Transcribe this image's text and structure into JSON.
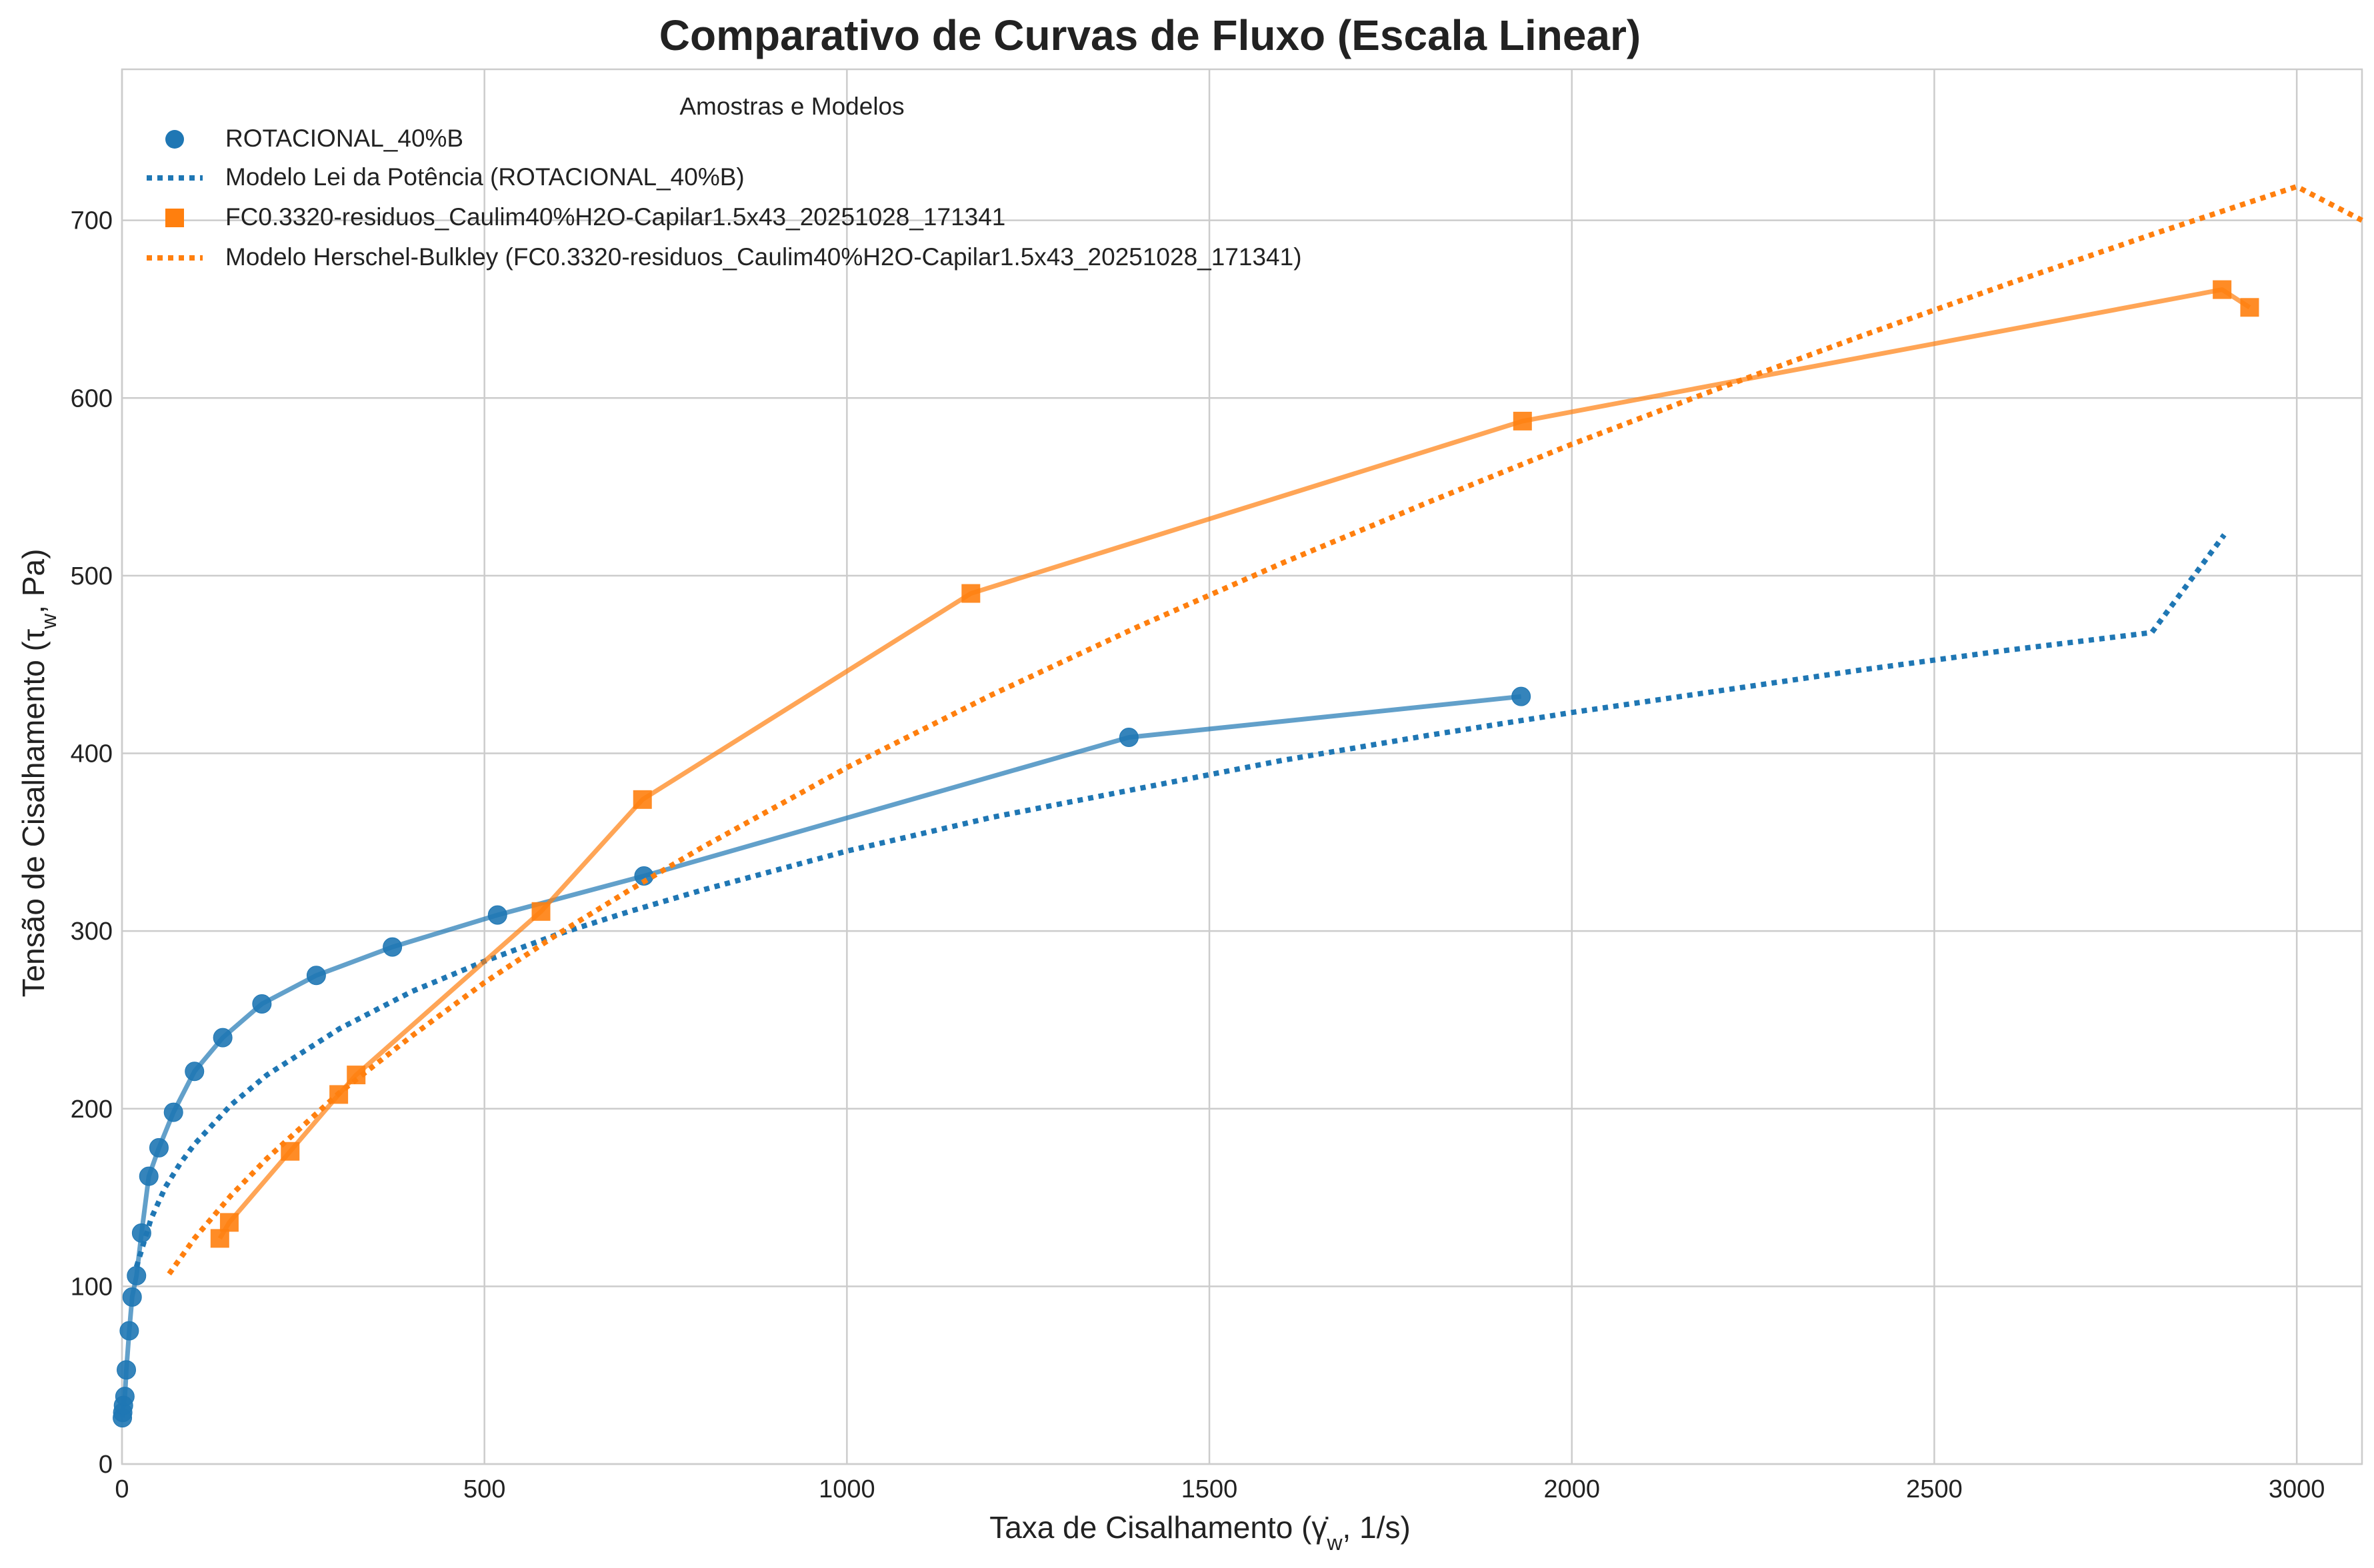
{
  "chart_data": {
    "type": "line",
    "title": "Comparativo de Curvas de Fluxo (Escala Linear)",
    "xlabel": "Taxa de Cisalhamento (γ̇w, 1/s)",
    "ylabel": "Tensão de Cisalhamento (τw, Pa)",
    "xlim": [
      0,
      3090
    ],
    "ylim": [
      0,
      785
    ],
    "xticks": [
      0,
      500,
      1000,
      1500,
      2000,
      2500,
      3000
    ],
    "yticks": [
      0,
      100,
      200,
      300,
      400,
      500,
      600,
      700
    ],
    "grid": true,
    "legend": {
      "title": "Amostras e Modelos",
      "placement": "top-left",
      "entries": [
        {
          "label": "ROTACIONAL_40%B",
          "series": 0,
          "style": "marker-circle"
        },
        {
          "label": "Modelo Lei da Potência (ROTACIONAL_40%B)",
          "series": 1,
          "style": "dotted"
        },
        {
          "label": "FC0.3320-residuos_Caulim40%H2O-Capilar1.5x43_20251028_171341",
          "series": 2,
          "style": "marker-square"
        },
        {
          "label": "Modelo Herschel-Bulkley (FC0.3320-residuos_Caulim40%H2O-Capilar1.5x43_20251028_171341)",
          "series": 3,
          "style": "dotted"
        }
      ]
    },
    "series": [
      {
        "name": "ROTACIONAL_40%B",
        "color": "#1f77b4",
        "marker": "circle",
        "line": "solid",
        "points": [
          [
            0.5,
            26
          ],
          [
            1,
            29
          ],
          [
            2,
            33
          ],
          [
            4,
            38
          ],
          [
            6,
            53
          ],
          [
            10,
            75
          ],
          [
            14,
            94
          ],
          [
            20,
            106
          ],
          [
            27,
            130
          ],
          [
            37,
            162
          ],
          [
            51,
            178
          ],
          [
            71,
            198
          ],
          [
            100,
            221
          ],
          [
            139,
            240
          ],
          [
            193,
            259
          ],
          [
            268,
            275
          ],
          [
            373,
            291
          ],
          [
            518,
            309
          ],
          [
            720,
            331
          ],
          [
            1389,
            409
          ],
          [
            1930,
            432
          ]
        ]
      },
      {
        "name": "Modelo Lei da Potência (ROTACIONAL_40%B)",
        "color": "#1f77b4",
        "line": "dotted",
        "model": "power-law",
        "x_range": [
          20,
          2900
        ],
        "points": [
          [
            20,
            111
          ],
          [
            40,
            138
          ],
          [
            60,
            156
          ],
          [
            80,
            169
          ],
          [
            100,
            180
          ],
          [
            150,
            202
          ],
          [
            200,
            219
          ],
          [
            300,
            245
          ],
          [
            400,
            266
          ],
          [
            500,
            283
          ],
          [
            600,
            298
          ],
          [
            700,
            311
          ],
          [
            800,
            323
          ],
          [
            1000,
            345
          ],
          [
            1200,
            364
          ],
          [
            1400,
            380
          ],
          [
            1600,
            396
          ],
          [
            1800,
            410
          ],
          [
            2000,
            423
          ],
          [
            2200,
            435
          ],
          [
            2400,
            447
          ],
          [
            2600,
            458
          ],
          [
            2800,
            468
          ],
          [
            2900,
            523
          ]
        ]
      },
      {
        "name": "FC0.3320-residuos_Caulim40%H2O-Capilar1.5x43_20251028_171341",
        "color": "#ff7f0e",
        "marker": "square",
        "line": "solid",
        "points": [
          [
            135,
            127
          ],
          [
            148,
            136
          ],
          [
            232,
            176
          ],
          [
            299,
            208
          ],
          [
            323,
            219
          ],
          [
            578,
            311
          ],
          [
            718,
            374
          ],
          [
            1171,
            490
          ],
          [
            1932,
            587
          ],
          [
            2897,
            661
          ],
          [
            2935,
            651
          ]
        ]
      },
      {
        "name": "Modelo Herschel-Bulkley (FC0.3320-residuos_Caulim40%H2O-Capilar1.5x43_20251028_171341)",
        "color": "#ff7f0e",
        "line": "dotted",
        "model": "herschel-bulkley",
        "x_range": [
          65,
          3090
        ],
        "points": [
          [
            65,
            107
          ],
          [
            100,
            127
          ],
          [
            150,
            151
          ],
          [
            200,
            172
          ],
          [
            300,
            209
          ],
          [
            400,
            241
          ],
          [
            500,
            271
          ],
          [
            600,
            298
          ],
          [
            700,
            323
          ],
          [
            800,
            347
          ],
          [
            1000,
            392
          ],
          [
            1200,
            433
          ],
          [
            1400,
            471
          ],
          [
            1600,
            507
          ],
          [
            1800,
            541
          ],
          [
            2000,
            574
          ],
          [
            2200,
            605
          ],
          [
            2400,
            635
          ],
          [
            2600,
            664
          ],
          [
            2800,
            692
          ],
          [
            3000,
            719
          ],
          [
            3090,
            700
          ]
        ]
      }
    ]
  }
}
